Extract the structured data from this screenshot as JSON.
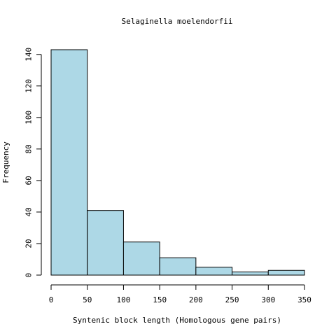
{
  "chart_data": {
    "type": "bar",
    "title": "Selaginella moelendorfii",
    "xlabel": "Syntenic block length (Homologous gene pairs)",
    "ylabel": "Frequency",
    "bins": [
      {
        "x0": 0,
        "x1": 50,
        "count": 143
      },
      {
        "x0": 50,
        "x1": 100,
        "count": 41
      },
      {
        "x0": 100,
        "x1": 150,
        "count": 21
      },
      {
        "x0": 150,
        "x1": 200,
        "count": 11
      },
      {
        "x0": 200,
        "x1": 250,
        "count": 5
      },
      {
        "x0": 250,
        "x1": 300,
        "count": 2
      },
      {
        "x0": 300,
        "x1": 350,
        "count": 3
      }
    ],
    "xticks": [
      0,
      50,
      100,
      150,
      200,
      250,
      300,
      350
    ],
    "yticks": [
      0,
      20,
      40,
      60,
      80,
      100,
      120,
      140
    ],
    "xlim": [
      0,
      350
    ],
    "ylim": [
      0,
      143
    ],
    "bar_color": "#add8e6",
    "grid": false,
    "legend": "none"
  }
}
